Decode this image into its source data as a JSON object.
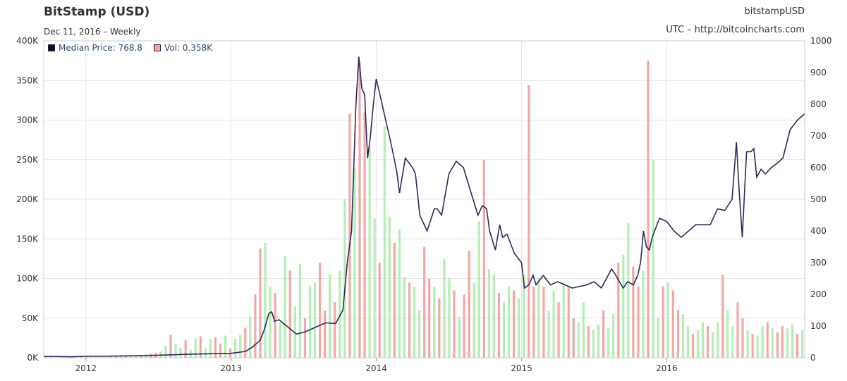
{
  "header": {
    "title": "BitStamp (USD)",
    "subtitle": "Dec 11, 2016 – Weekly",
    "symbol": "bitstampUSD",
    "source": "UTC – http://bitcoincharts.com"
  },
  "legend": {
    "price_label": "Median Price: 768.8",
    "volume_label": "Vol: 0.358K",
    "price_color": "#0b0b3b",
    "volume_color": "#f4a6a6"
  },
  "chart_data": {
    "type": "line",
    "title": "BitStamp (USD)",
    "x_tick_labels": [
      "2012",
      "2013",
      "2014",
      "2015",
      "2016"
    ],
    "x_ticks": [
      2012.0,
      2013.0,
      2014.0,
      2015.0,
      2016.0
    ],
    "xlim": [
      2011.71,
      2016.95
    ],
    "left_axis": {
      "series": "Volume",
      "ylim": [
        0,
        400000
      ],
      "tick_labels": [
        "0K",
        "50K",
        "100K",
        "150K",
        "200K",
        "250K",
        "300K",
        "350K",
        "400K"
      ],
      "ticks": [
        0,
        50000,
        100000,
        150000,
        200000,
        250000,
        300000,
        350000,
        400000
      ]
    },
    "right_axis": {
      "series": "Median Price",
      "ylim": [
        0,
        1000
      ],
      "tick_labels": [
        "0",
        "100",
        "200",
        "300",
        "400",
        "500",
        "600",
        "700",
        "800",
        "900",
        "1000"
      ],
      "ticks": [
        0,
        100,
        200,
        300,
        400,
        500,
        600,
        700,
        800,
        900,
        1000
      ]
    },
    "grid": true,
    "legend_position": "top-left",
    "colors": {
      "price_line": "#2a2a5a",
      "volume_up": "#b4eeb4",
      "volume_down": "#f4a6a6",
      "grid": "#e6e6e6"
    },
    "series": [
      {
        "name": "Median Price",
        "axis": "right",
        "x": [
          2011.71,
          2011.8,
          2011.9,
          2012.0,
          2012.1,
          2012.3,
          2012.5,
          2012.7,
          2012.9,
          2013.0,
          2013.1,
          2013.15,
          2013.2,
          2013.23,
          2013.26,
          2013.28,
          2013.3,
          2013.33,
          2013.37,
          2013.45,
          2013.5,
          2013.55,
          2013.65,
          2013.72,
          2013.77,
          2013.8,
          2013.83,
          2013.86,
          2013.88,
          2013.9,
          2013.92,
          2013.94,
          2013.96,
          2013.98,
          2014.0,
          2014.02,
          2014.05,
          2014.1,
          2014.14,
          2014.16,
          2014.2,
          2014.25,
          2014.27,
          2014.3,
          2014.35,
          2014.4,
          2014.42,
          2014.45,
          2014.5,
          2014.55,
          2014.6,
          2014.64,
          2014.7,
          2014.73,
          2014.76,
          2014.78,
          2014.82,
          2014.85,
          2014.87,
          2014.9,
          2014.95,
          2015.0,
          2015.02,
          2015.05,
          2015.08,
          2015.1,
          2015.15,
          2015.2,
          2015.25,
          2015.35,
          2015.45,
          2015.5,
          2015.55,
          2015.62,
          2015.65,
          2015.7,
          2015.73,
          2015.77,
          2015.8,
          2015.82,
          2015.84,
          2015.86,
          2015.88,
          2015.9,
          2015.95,
          2016.0,
          2016.05,
          2016.1,
          2016.2,
          2016.3,
          2016.35,
          2016.4,
          2016.45,
          2016.48,
          2016.5,
          2016.52,
          2016.55,
          2016.58,
          2016.6,
          2016.62,
          2016.65,
          2016.68,
          2016.72,
          2016.75,
          2016.8,
          2016.85,
          2016.9,
          2016.95
        ],
        "y": [
          5,
          4,
          3,
          5,
          5,
          6,
          8,
          11,
          13,
          14,
          20,
          35,
          55,
          90,
          140,
          145,
          115,
          120,
          105,
          75,
          80,
          90,
          110,
          108,
          150,
          300,
          400,
          800,
          950,
          850,
          830,
          630,
          700,
          800,
          880,
          840,
          780,
          680,
          590,
          520,
          630,
          600,
          580,
          450,
          400,
          470,
          470,
          450,
          580,
          620,
          600,
          540,
          450,
          480,
          470,
          400,
          340,
          420,
          380,
          390,
          330,
          300,
          220,
          230,
          260,
          230,
          260,
          230,
          240,
          220,
          230,
          240,
          220,
          280,
          260,
          220,
          240,
          230,
          260,
          300,
          400,
          350,
          340,
          380,
          440,
          430,
          400,
          380,
          420,
          420,
          470,
          465,
          500,
          680,
          520,
          380,
          650,
          650,
          660,
          570,
          595,
          580,
          600,
          610,
          630,
          720,
          750,
          770
        ]
      },
      {
        "name": "Volume",
        "axis": "left",
        "values": [
          2000,
          1500,
          1000,
          800,
          700,
          900,
          1200,
          1500,
          2000,
          1000,
          900,
          800,
          900,
          1200,
          1500,
          2200,
          2500,
          3000,
          2800,
          3500,
          4000,
          5000,
          6000,
          8000,
          15000,
          29000,
          18000,
          12000,
          22000,
          10000,
          25000,
          27000,
          12000,
          23000,
          26000,
          18000,
          28000,
          12000,
          24000,
          29000,
          38000,
          52000,
          80000,
          138000,
          145000,
          90000,
          82000,
          45000,
          128000,
          110000,
          65000,
          118000,
          50000,
          90000,
          95000,
          120000,
          60000,
          105000,
          70000,
          110000,
          200000,
          308000,
          240000,
          372000,
          310000,
          266000,
          176000,
          120000,
          292000,
          178000,
          145000,
          162000,
          102000,
          95000,
          90000,
          60000,
          140000,
          100000,
          90000,
          75000,
          125000,
          100000,
          85000,
          52000,
          80000,
          135000,
          95000,
          172000,
          250000,
          112000,
          105000,
          82000,
          70000,
          90000,
          85000,
          75000,
          105000,
          344000,
          90000,
          100000,
          90000,
          60000,
          85000,
          70000,
          95000,
          90000,
          50000,
          45000,
          70000,
          40000,
          35000,
          42000,
          60000,
          38000,
          55000,
          120000,
          130000,
          170000,
          115000,
          90000,
          110000,
          375000,
          250000,
          50000,
          90000,
          95000,
          85000,
          60000,
          55000,
          40000,
          30000,
          35000,
          45000,
          40000,
          32000,
          45000,
          105000,
          60000,
          40000,
          70000,
          50000,
          35000,
          30000,
          28000,
          40000,
          45000,
          38000,
          32000,
          40000,
          37000,
          42000,
          30000,
          35000
        ]
      }
    ]
  }
}
